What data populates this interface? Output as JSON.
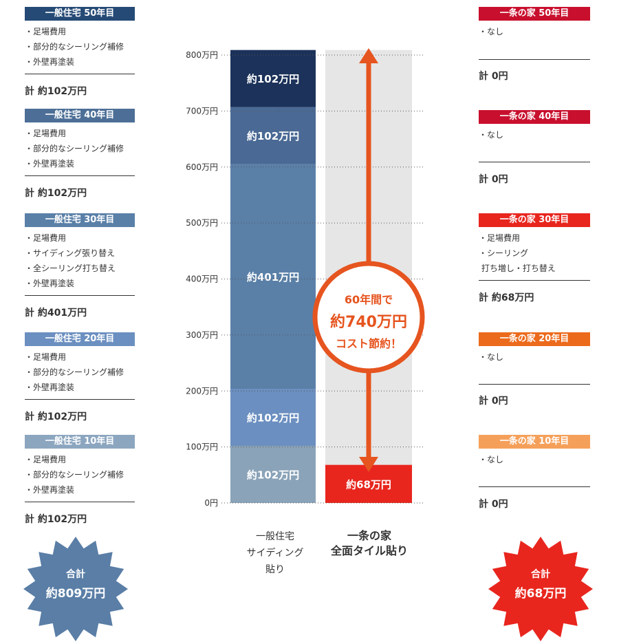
{
  "chart_data": {
    "type": "bar",
    "stacked": true,
    "ylim": [
      0,
      800
    ],
    "yticks": [
      "0円",
      "100万円",
      "200万円",
      "300万円",
      "400万円",
      "500万円",
      "600万円",
      "700万円",
      "800万円"
    ],
    "categories": [
      "一般住宅\nサイディング\n貼り",
      "一条の家\n全面タイル貼り"
    ],
    "general_segments": [
      {
        "value": 102,
        "label": "約102万円",
        "color": "#8aa3b8"
      },
      {
        "value": 102,
        "label": "約102万円",
        "color": "#6b8fc0"
      },
      {
        "value": 401,
        "label": "約401万円",
        "color": "#5a80a8"
      },
      {
        "value": 102,
        "label": "約102万円",
        "color": "#4a6a95"
      },
      {
        "value": 102,
        "label": "約102万円",
        "color": "#1c325a"
      }
    ],
    "ichijo_segments": [
      {
        "value": 68,
        "label": "約68万円",
        "color": "#e8261e"
      }
    ],
    "ichijo_background_color": "#e6e6e6",
    "callout": {
      "line1": "60年間で",
      "amount": "約740万円",
      "line3": "コスト節約！",
      "color": "#e6541f"
    }
  },
  "left_panel": [
    {
      "header": "一般住宅 50年目",
      "color": "#254a75",
      "items": [
        "・足場費用",
        "・部分的なシーリング補修",
        "・外壁再塗装"
      ],
      "total": "計 約102万円"
    },
    {
      "header": "一般住宅 40年目",
      "color": "#4d6f97",
      "items": [
        "・足場費用",
        "・部分的なシーリング補修",
        "・外壁再塗装"
      ],
      "total": "計 約102万円"
    },
    {
      "header": "一般住宅 30年目",
      "color": "#5a80a8",
      "items": [
        "・足場費用",
        "・サイディング張り替え",
        "・全シーリング打ち替え",
        "・外壁再塗装"
      ],
      "total": "計 約401万円"
    },
    {
      "header": "一般住宅 20年目",
      "color": "#6b8fc0",
      "items": [
        "・足場費用",
        "・部分的なシーリング補修",
        "・外壁再塗装"
      ],
      "total": "計 約102万円"
    },
    {
      "header": "一般住宅 10年目",
      "color": "#8ca6c0",
      "items": [
        "・足場費用",
        "・部分的なシーリング補修",
        "・外壁再塗装"
      ],
      "total": "計 約102万円"
    }
  ],
  "right_panel": [
    {
      "header": "一条の家 50年目",
      "color": "#c8102e",
      "items": [
        "・なし"
      ],
      "total": "計 0円"
    },
    {
      "header": "一条の家 40年目",
      "color": "#c8102e",
      "items": [
        "・なし"
      ],
      "total": "計 0円"
    },
    {
      "header": "一条の家 30年目",
      "color": "#e8261e",
      "items": [
        "・足場費用",
        "・シーリング",
        " 打ち増し・打ち替え"
      ],
      "total": "計 約68万円"
    },
    {
      "header": "一条の家 20年目",
      "color": "#ec6a1c",
      "items": [
        "・なし"
      ],
      "total": "計 0円"
    },
    {
      "header": "一条の家 10年目",
      "color": "#f5a05a",
      "items": [
        "・なし"
      ],
      "total": "計 0円"
    }
  ],
  "badges": {
    "left": {
      "line1": "合計",
      "line2": "約809万円",
      "color": "#5a7ea6"
    },
    "right": {
      "line1": "合計",
      "line2": "約68万円",
      "color": "#e8261e"
    }
  }
}
